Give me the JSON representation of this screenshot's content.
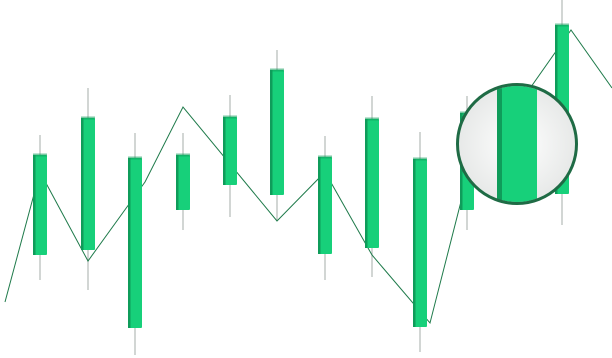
{
  "chart_data": {
    "type": "candlestick",
    "title": "",
    "xlabel": "",
    "ylabel": "",
    "axes_visible": false,
    "grid": false,
    "legend": "none",
    "ylim": [
      0,
      358
    ],
    "candles": [
      {
        "open": 103,
        "close": 203,
        "high": 223,
        "low": 78
      },
      {
        "open": 108,
        "close": 240,
        "high": 270,
        "low": 68
      },
      {
        "open": 30,
        "close": 200,
        "high": 225,
        "low": 3
      },
      {
        "open": 148,
        "close": 203,
        "high": 225,
        "low": 128
      },
      {
        "open": 173,
        "close": 241,
        "high": 263,
        "low": 141
      },
      {
        "open": 163,
        "close": 288,
        "high": 308,
        "low": 138
      },
      {
        "open": 104,
        "close": 201,
        "high": 222,
        "low": 78
      },
      {
        "open": 110,
        "close": 239,
        "high": 262,
        "low": 81
      },
      {
        "open": 31,
        "close": 199,
        "high": 226,
        "low": 6
      },
      {
        "open": 148,
        "close": 245,
        "high": 262,
        "low": 128
      },
      {
        "open": 164,
        "close": 333,
        "high": 358,
        "low": 133
      }
    ],
    "line": [
      56,
      186,
      97,
      176,
      251,
      137,
      186,
      103,
      35,
      180,
      328,
      270
    ],
    "colors": {
      "candle": "#17d07a",
      "candle_shade": "#0f9c5a",
      "wick": "#b9bfbc",
      "line": "#1e7a4a",
      "magnifier_border": "#1f6b45",
      "magnifier_bg": "#f2f2f2"
    },
    "magnifier": "zoom-circle"
  }
}
